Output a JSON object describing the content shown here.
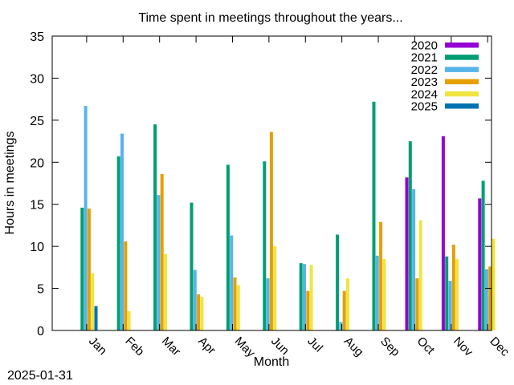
{
  "footer": {
    "date": "2025-01-31"
  },
  "chart_data": {
    "type": "bar",
    "title": "Time spent in meetings throughout the years...",
    "xlabel": "Month",
    "ylabel": "Hours in meetings",
    "ylim": [
      0,
      35
    ],
    "yticks": [
      0,
      5,
      10,
      15,
      20,
      25,
      30,
      35
    ],
    "grid": false,
    "legend_position": "top-right",
    "categories": [
      "Jan",
      "Feb",
      "Mar",
      "Apr",
      "May",
      "Jun",
      "Jul",
      "Aug",
      "Sep",
      "Oct",
      "Nov",
      "Dec"
    ],
    "series": [
      {
        "name": "2020",
        "color": "#9400d3",
        "values": [
          0,
          0,
          0,
          0,
          0,
          0,
          0,
          0,
          0,
          18.2,
          23.1,
          15.7
        ]
      },
      {
        "name": "2021",
        "color": "#009e73",
        "values": [
          14.6,
          20.7,
          24.5,
          15.2,
          19.7,
          20.1,
          8.0,
          11.4,
          27.2,
          22.5,
          8.8,
          17.8
        ]
      },
      {
        "name": "2022",
        "color": "#56b4e9",
        "values": [
          26.7,
          23.4,
          16.1,
          7.2,
          11.3,
          6.2,
          7.9,
          1.0,
          8.9,
          16.8,
          5.9,
          7.3
        ]
      },
      {
        "name": "2023",
        "color": "#e69f00",
        "values": [
          14.5,
          10.6,
          18.6,
          4.3,
          6.3,
          23.6,
          4.7,
          4.7,
          12.9,
          6.2,
          10.2,
          7.6
        ]
      },
      {
        "name": "2024",
        "color": "#f0e442",
        "values": [
          6.8,
          2.3,
          9.1,
          4.0,
          5.4,
          10.0,
          7.8,
          6.2,
          8.5,
          13.1,
          8.5,
          10.9
        ]
      },
      {
        "name": "2025",
        "color": "#0072b2",
        "values": [
          2.9,
          0,
          0,
          0,
          0,
          0,
          0,
          0,
          0,
          0,
          0,
          0
        ]
      }
    ]
  }
}
